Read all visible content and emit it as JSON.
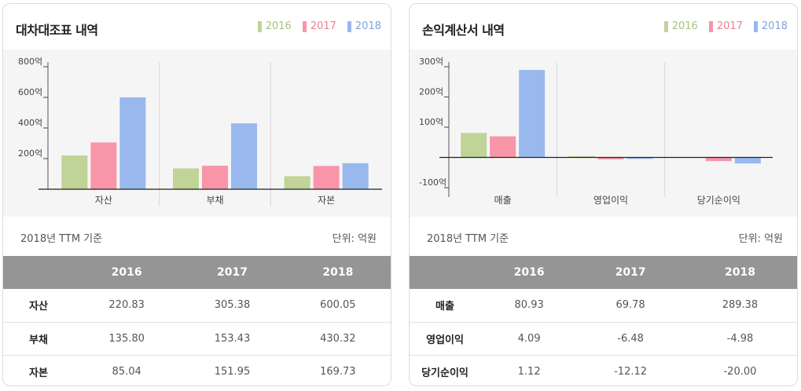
{
  "colors": {
    "y2016": "#bfd496",
    "y2017": "#f895a8",
    "y2018": "#98b8ee"
  },
  "years": [
    "2016",
    "2017",
    "2018"
  ],
  "panels": [
    {
      "title": "대차대조표 내역",
      "basis": "2018년 TTM 기준",
      "unit": "단위: 억원",
      "rows": [
        {
          "label": "자산",
          "values": [
            "220.83",
            "305.38",
            "600.05"
          ]
        },
        {
          "label": "부채",
          "values": [
            "135.80",
            "153.43",
            "430.32"
          ]
        },
        {
          "label": "자본",
          "values": [
            "85.04",
            "151.95",
            "169.73"
          ]
        }
      ]
    },
    {
      "title": "손익계산서 내역",
      "basis": "2018년 TTM 기준",
      "unit": "단위: 억원",
      "rows": [
        {
          "label": "매출",
          "values": [
            "80.93",
            "69.78",
            "289.38"
          ]
        },
        {
          "label": "영업이익",
          "values": [
            "4.09",
            "-6.48",
            "-4.98"
          ]
        },
        {
          "label": "당기순이익",
          "values": [
            "1.12",
            "-12.12",
            "-20.00"
          ]
        }
      ]
    }
  ],
  "chart_data": [
    {
      "type": "bar",
      "title": "대차대조표 내역",
      "categories": [
        "자산",
        "부채",
        "자본"
      ],
      "series": [
        {
          "name": "2016",
          "values": [
            220.83,
            135.8,
            85.04
          ]
        },
        {
          "name": "2017",
          "values": [
            305.38,
            153.43,
            151.95
          ]
        },
        {
          "name": "2018",
          "values": [
            600.05,
            430.32,
            169.73
          ]
        }
      ],
      "ylim": [
        0,
        800
      ],
      "yticks": [
        200,
        400,
        600,
        800
      ],
      "ytick_labels": [
        "200억",
        "400억",
        "600억",
        "800억"
      ],
      "legend": "top-right"
    },
    {
      "type": "bar",
      "title": "손익계산서 내역",
      "categories": [
        "매출",
        "영업이익",
        "당기순이익"
      ],
      "series": [
        {
          "name": "2016",
          "values": [
            80.93,
            4.09,
            1.12
          ]
        },
        {
          "name": "2017",
          "values": [
            69.78,
            -6.48,
            -12.12
          ]
        },
        {
          "name": "2018",
          "values": [
            289.38,
            -4.98,
            -20.0
          ]
        }
      ],
      "ylim": [
        -100,
        300
      ],
      "yticks": [
        -100,
        100,
        200,
        300
      ],
      "ytick_labels": [
        "-100억",
        "100억",
        "200억",
        "300억"
      ],
      "legend": "top-right"
    }
  ]
}
